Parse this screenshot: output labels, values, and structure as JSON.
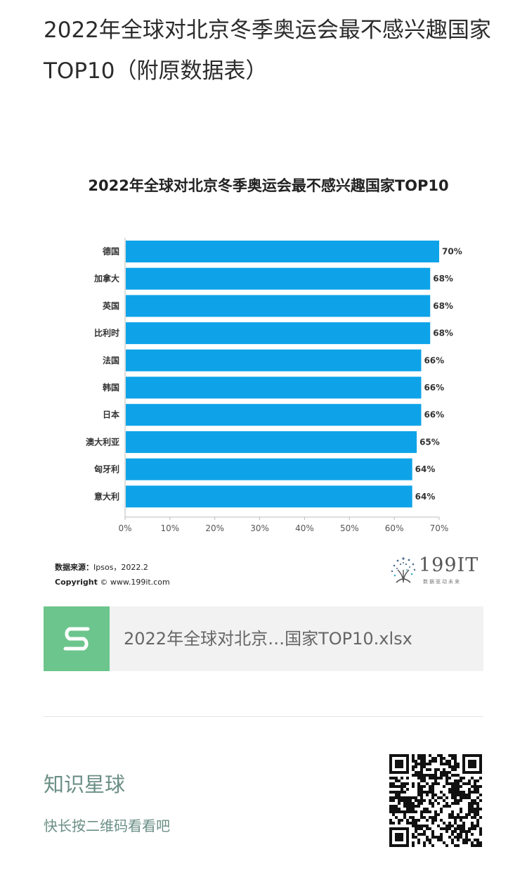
{
  "article": {
    "title": "2022年全球对北京冬季奥运会最不感兴趣国家TOP10（附原数据表）"
  },
  "figure": {
    "source_label": "数据来源：",
    "source_value": "Ipsos，2022.2",
    "copyright_label": "Copyright",
    "copyright_value": "© www.199it.com",
    "logo_text": "199IT",
    "logo_slogan": "数据驱动未来"
  },
  "chart_data": {
    "type": "bar",
    "orientation": "horizontal",
    "title": "2022年全球对北京冬季奥运会最不感兴趣国家TOP10",
    "xlabel": "",
    "ylabel": "",
    "categories": [
      "德国",
      "加拿大",
      "英国",
      "比利时",
      "法国",
      "韩国",
      "日本",
      "澳大利亚",
      "匈牙利",
      "意大利"
    ],
    "values": [
      70,
      68,
      68,
      68,
      66,
      66,
      66,
      65,
      64,
      64
    ],
    "value_labels": [
      "70%",
      "68%",
      "68%",
      "68%",
      "66%",
      "66%",
      "66%",
      "65%",
      "64%",
      "64%"
    ],
    "xlim": [
      0,
      70
    ],
    "xticks": [
      0,
      10,
      20,
      30,
      40,
      50,
      60,
      70
    ],
    "xtick_labels": [
      "0%",
      "10%",
      "20%",
      "30%",
      "40%",
      "50%",
      "60%",
      "70%"
    ],
    "bar_color": "#0ea3e8",
    "grid": false,
    "legend": "none"
  },
  "attachment": {
    "file_name": "2022年全球对北京…国家TOP10.xlsx",
    "icon": "spreadsheet-s-icon",
    "icon_color": "#6cc58c"
  },
  "promo": {
    "title": "知识星球",
    "subtitle": "快长按二维码看看吧",
    "qr_icon": "qr-code-icon"
  }
}
